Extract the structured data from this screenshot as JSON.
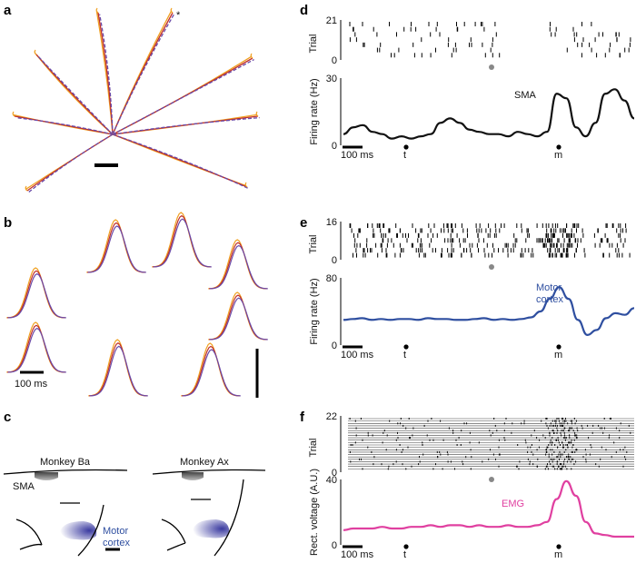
{
  "panel_labels": {
    "a": "a",
    "b": "b",
    "c": "c",
    "d": "d",
    "e": "e",
    "f": "f"
  },
  "colors": {
    "orange": "#f0a020",
    "red": "#c0302a",
    "purple": "#6a4aa8",
    "blue": "#2f4fa0",
    "pink": "#e040a0",
    "black": "#111111",
    "gray": "#888888"
  },
  "panel_a": {
    "asterisk": "*"
  },
  "panel_b": {
    "scalebar_label": "100 ms"
  },
  "panel_c": {
    "monkey_ba": "Monkey Ba",
    "monkey_ax": "Monkey Ax",
    "sma_label": "SMA",
    "motor_label_1": "Motor",
    "motor_label_2": "cortex"
  },
  "panel_d": {
    "raster_ylabel": "Trial",
    "raster_ymax": "21",
    "raster_ymin": "0",
    "chart_data": {
      "type": "line",
      "ylabel": "Firing rate (Hz)",
      "ylim": [
        0,
        30
      ],
      "yticks": [
        "0",
        "30"
      ],
      "series": [
        {
          "name": "SMA",
          "values": [
            5,
            8,
            9,
            6,
            5,
            3,
            4,
            3,
            4,
            5,
            10,
            12,
            10,
            7,
            6,
            5,
            5,
            4,
            6,
            5,
            4,
            6,
            23,
            21,
            8,
            4,
            10,
            23,
            25,
            20,
            12
          ]
        }
      ],
      "scalebar": "100 ms",
      "markers": [
        "t",
        "m"
      ]
    }
  },
  "panel_e": {
    "raster_ylabel": "Trial",
    "raster_ymax": "16",
    "raster_ymin": "0",
    "chart_data": {
      "type": "line",
      "ylabel": "Firing rate (Hz)",
      "ylim": [
        0,
        80
      ],
      "yticks": [
        "0",
        "80"
      ],
      "series": [
        {
          "name": "Motor cortex",
          "values": [
            30,
            31,
            32,
            30,
            31,
            30,
            31,
            31,
            30,
            32,
            31,
            31,
            30,
            30,
            31,
            32,
            30,
            31,
            30,
            31,
            33,
            40,
            55,
            69,
            55,
            30,
            12,
            18,
            32,
            38,
            36,
            44
          ]
        }
      ],
      "scalebar": "100 ms",
      "markers": [
        "t",
        "m"
      ]
    }
  },
  "panel_f": {
    "raster_ylabel": "Trial",
    "raster_ymax": "22",
    "raster_ymin": "0",
    "chart_data": {
      "type": "line",
      "ylabel": "Rect. voltage (A.U.)",
      "ylim": [
        0,
        40
      ],
      "yticks": [
        "0",
        "40"
      ],
      "series": [
        {
          "name": "EMG",
          "values": [
            9,
            10,
            10,
            10,
            11,
            10,
            10,
            11,
            11,
            12,
            11,
            12,
            12,
            11,
            12,
            11,
            11,
            12,
            11,
            11,
            12,
            14,
            28,
            39,
            30,
            14,
            7,
            6,
            5,
            5,
            5
          ]
        }
      ],
      "scalebar": "100 ms",
      "markers": [
        "t",
        "m"
      ]
    }
  }
}
